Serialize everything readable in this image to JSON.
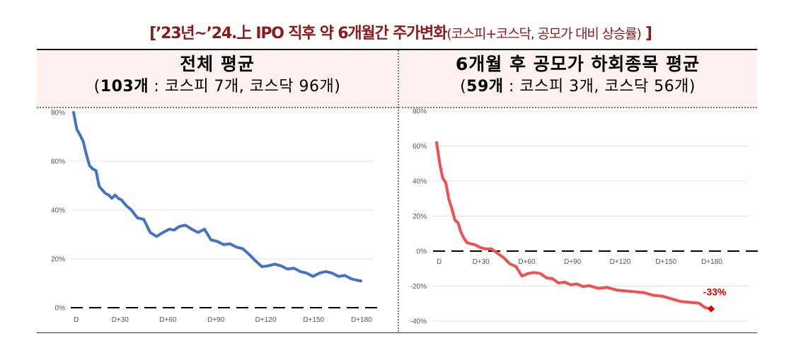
{
  "title": {
    "open_bracket": "[",
    "main": "’23년~’24.上 IPO 직후 약 6개월간 주가변화",
    "sub": "(코스피+코스닥, 공모가 대비 상승률)",
    "close_bracket": " ]"
  },
  "panels": [
    {
      "heading": "전체 평균",
      "count_bold": "103개",
      "count_rest": " : 코스피 7개, 코스닥 96개)",
      "open_paren": "("
    },
    {
      "heading": "6개월 후 공모가 하회종목 평균",
      "count_bold": "59개",
      "count_rest": " : 코스피 3개, 코스닥 56개)",
      "open_paren": "("
    }
  ],
  "chart_data": [
    {
      "type": "line",
      "title": "전체 평균",
      "subtitle": "(103개 : 코스피 7개, 코스닥 96개)",
      "xlabel": "",
      "ylabel": "",
      "x_ticks": [
        "D",
        "D+30",
        "D+60",
        "D+90",
        "D+120",
        "D+150",
        "D+180"
      ],
      "y_ticks": [
        "0%",
        "20%",
        "40%",
        "60%",
        "80%"
      ],
      "ylim": [
        0,
        80
      ],
      "xlim": [
        0,
        180
      ],
      "grid": true,
      "reference_line": {
        "y": 0,
        "style": "dashed",
        "color": "#000000"
      },
      "series": [
        {
          "name": "전체 평균",
          "color": "#4472c4",
          "x": [
            0,
            2,
            4,
            6,
            8,
            10,
            12,
            14,
            16,
            18,
            20,
            22,
            24,
            26,
            28,
            30,
            33,
            36,
            40,
            44,
            48,
            52,
            56,
            60,
            63,
            66,
            70,
            74,
            78,
            82,
            86,
            90,
            94,
            98,
            102,
            106,
            110,
            114,
            118,
            122,
            126,
            130,
            134,
            138,
            142,
            146,
            150,
            154,
            158,
            162,
            166,
            170,
            174,
            178,
            180
          ],
          "values": [
            80,
            73,
            71,
            68,
            63,
            58,
            57,
            56,
            50,
            48,
            47,
            46,
            45,
            46,
            45,
            44,
            42,
            40,
            37,
            36,
            31,
            29,
            31,
            32,
            32,
            33,
            34,
            32,
            31,
            32,
            28,
            27,
            26,
            26,
            25,
            24,
            22,
            19,
            17,
            17,
            18,
            17,
            16,
            16,
            15,
            14,
            13,
            14,
            15,
            14,
            13,
            13,
            12,
            11,
            11
          ]
        }
      ]
    },
    {
      "type": "line",
      "title": "6개월 후 공모가 하회종목 평균",
      "subtitle": "(59개 : 코스피 3개, 코스닥 56개)",
      "xlabel": "",
      "ylabel": "",
      "x_ticks": [
        "D",
        "D+30",
        "D+60",
        "D+90",
        "D+120",
        "D+150",
        "D+180"
      ],
      "y_ticks": [
        "-40%",
        "-20%",
        "0%",
        "20%",
        "40%",
        "60%",
        "80%"
      ],
      "ylim": [
        -40,
        80
      ],
      "xlim": [
        0,
        180
      ],
      "grid": true,
      "reference_line": {
        "y": 0,
        "style": "dashed",
        "color": "#000000"
      },
      "annotations": [
        {
          "x": 180,
          "y": -33,
          "text": "-33%",
          "color": "#e00000",
          "marker": "diamond"
        }
      ],
      "series": [
        {
          "name": "6개월 후 공모가 하회종목 평균",
          "color": "#f05050",
          "x": [
            0,
            2,
            4,
            6,
            8,
            10,
            12,
            14,
            16,
            18,
            20,
            22,
            25,
            28,
            32,
            36,
            40,
            44,
            48,
            52,
            56,
            60,
            64,
            68,
            72,
            76,
            80,
            84,
            88,
            92,
            96,
            100,
            106,
            112,
            118,
            124,
            130,
            136,
            142,
            148,
            154,
            160,
            166,
            172,
            176,
            180
          ],
          "values": [
            62,
            50,
            42,
            39,
            30,
            24,
            18,
            16,
            11,
            7,
            5,
            4,
            4,
            2,
            1.5,
            1,
            -1,
            -4,
            -7,
            -9,
            -14,
            -13,
            -12,
            -13,
            -15,
            -16,
            -18,
            -18,
            -19,
            -19,
            -20,
            -20,
            -21,
            -21,
            -22,
            -23,
            -23,
            -24,
            -25,
            -26,
            -27,
            -29,
            -29,
            -30,
            -32,
            -33
          ]
        }
      ]
    }
  ]
}
